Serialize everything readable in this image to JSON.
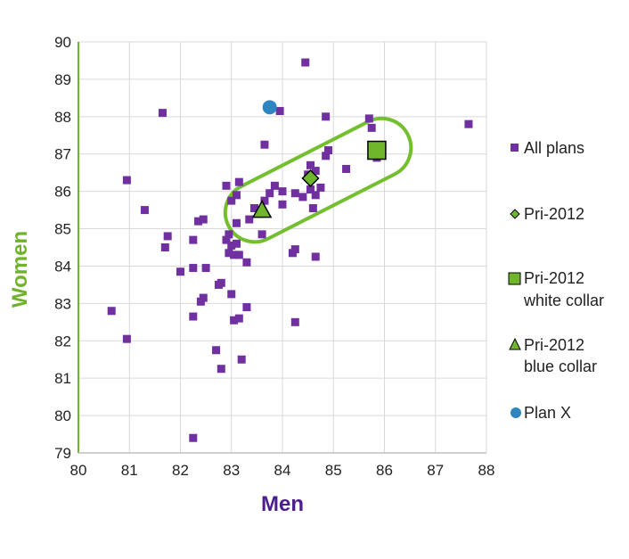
{
  "chart_data": {
    "type": "scatter",
    "title": "",
    "xlabel": "Men",
    "ylabel": "Women",
    "xlim": [
      80,
      88
    ],
    "ylim": [
      79,
      90
    ],
    "x_ticks": [
      80,
      81,
      82,
      83,
      84,
      85,
      86,
      87,
      88
    ],
    "y_ticks": [
      79,
      80,
      81,
      82,
      83,
      84,
      85,
      86,
      87,
      88,
      89,
      90
    ],
    "grid": true,
    "legend_position": "right",
    "colors": {
      "all_plans": "#7030a0",
      "pri": "#70b62c",
      "plan_x": "#2e86c1",
      "xlabel": "#4b1e8c",
      "ylabel": "#6fb32b",
      "highlight_ellipse": "#74bf2f"
    },
    "series": [
      {
        "name": "All plans",
        "marker": "square",
        "points": [
          [
            84.45,
            89.45
          ],
          [
            83.95,
            88.15
          ],
          [
            81.65,
            88.1
          ],
          [
            84.85,
            88.0
          ],
          [
            85.7,
            87.95
          ],
          [
            85.75,
            87.7
          ],
          [
            87.65,
            87.8
          ],
          [
            83.65,
            87.25
          ],
          [
            84.9,
            87.1
          ],
          [
            84.85,
            86.95
          ],
          [
            85.85,
            86.9
          ],
          [
            85.25,
            86.6
          ],
          [
            84.55,
            86.7
          ],
          [
            84.65,
            86.55
          ],
          [
            84.5,
            86.45
          ],
          [
            80.95,
            86.3
          ],
          [
            83.15,
            86.25
          ],
          [
            82.9,
            86.15
          ],
          [
            83.85,
            86.15
          ],
          [
            84.75,
            86.1
          ],
          [
            84.55,
            86.05
          ],
          [
            84.0,
            86.0
          ],
          [
            84.25,
            85.95
          ],
          [
            83.75,
            85.95
          ],
          [
            84.4,
            85.85
          ],
          [
            84.65,
            85.9
          ],
          [
            83.1,
            85.9
          ],
          [
            83.0,
            85.75
          ],
          [
            83.65,
            85.75
          ],
          [
            84.0,
            85.65
          ],
          [
            84.6,
            85.55
          ],
          [
            83.45,
            85.55
          ],
          [
            81.3,
            85.5
          ],
          [
            83.55,
            85.4
          ],
          [
            83.35,
            85.25
          ],
          [
            82.45,
            85.25
          ],
          [
            82.35,
            85.2
          ],
          [
            83.1,
            85.15
          ],
          [
            83.6,
            84.85
          ],
          [
            82.95,
            84.85
          ],
          [
            81.75,
            84.8
          ],
          [
            82.25,
            84.7
          ],
          [
            82.9,
            84.7
          ],
          [
            83.1,
            84.6
          ],
          [
            83.0,
            84.55
          ],
          [
            81.7,
            84.5
          ],
          [
            84.25,
            84.45
          ],
          [
            84.2,
            84.35
          ],
          [
            83.05,
            84.3
          ],
          [
            83.15,
            84.3
          ],
          [
            82.95,
            84.35
          ],
          [
            84.65,
            84.25
          ],
          [
            83.3,
            84.1
          ],
          [
            82.5,
            83.95
          ],
          [
            82.25,
            83.95
          ],
          [
            82.0,
            83.85
          ],
          [
            82.8,
            83.55
          ],
          [
            82.75,
            83.5
          ],
          [
            83.0,
            83.25
          ],
          [
            82.45,
            83.15
          ],
          [
            82.4,
            83.05
          ],
          [
            83.3,
            82.9
          ],
          [
            80.65,
            82.8
          ],
          [
            82.25,
            82.65
          ],
          [
            83.15,
            82.6
          ],
          [
            83.05,
            82.55
          ],
          [
            84.25,
            82.5
          ],
          [
            80.95,
            82.05
          ],
          [
            82.7,
            81.75
          ],
          [
            83.2,
            81.5
          ],
          [
            82.8,
            81.25
          ],
          [
            82.25,
            79.4
          ]
        ]
      },
      {
        "name": "Pri-2012",
        "marker": "diamond",
        "points": [
          [
            84.55,
            86.35
          ]
        ]
      },
      {
        "name": "Pri-2012 white collar",
        "marker": "big-square",
        "points": [
          [
            85.85,
            87.1
          ]
        ]
      },
      {
        "name": "Pri-2012 blue collar",
        "marker": "triangle",
        "points": [
          [
            83.6,
            85.5
          ]
        ]
      },
      {
        "name": "Plan X",
        "marker": "circle",
        "points": [
          [
            83.75,
            88.25
          ]
        ]
      }
    ],
    "annotation": {
      "shape": "highlight-ellipse",
      "around_series": [
        "Pri-2012",
        "Pri-2012 white collar",
        "Pri-2012 blue collar"
      ],
      "from": [
        83.55,
        85.5
      ],
      "to": [
        85.85,
        87.1
      ]
    }
  },
  "legend": {
    "all_plans": "All plans",
    "pri_2012": "Pri-2012",
    "white_collar_line1": "Pri-2012",
    "white_collar_line2": "white collar",
    "blue_collar_line1": "Pri-2012",
    "blue_collar_line2": "blue collar",
    "plan_x": "Plan X"
  }
}
